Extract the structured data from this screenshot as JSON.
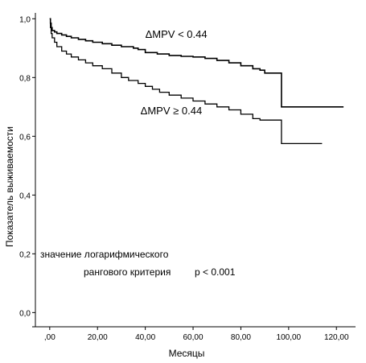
{
  "chart_data": {
    "type": "line",
    "step": true,
    "xlabel": "Месяцы",
    "ylabel": "Показатель выживаемости",
    "xlim": [
      -6,
      128
    ],
    "ylim": [
      -0.01,
      1.02
    ],
    "x_ticks": [
      0,
      20,
      40,
      60,
      80,
      100,
      120
    ],
    "x_tick_labels": [
      ",00",
      "20,00",
      "40,00",
      "60,00",
      "80,00",
      "100,00",
      "120,00"
    ],
    "y_ticks": [
      0,
      0.2,
      0.4,
      0.6,
      0.8,
      1.0
    ],
    "y_tick_labels": [
      "0,0",
      "0,2",
      "0,4",
      "0,6",
      "0,8",
      "1,0"
    ],
    "grid": false,
    "series": [
      {
        "name": "ΔMPV < 0.44",
        "color": "#000000",
        "points": [
          [
            0,
            1.0
          ],
          [
            0.3,
            0.985
          ],
          [
            0.6,
            0.97
          ],
          [
            1,
            0.96
          ],
          [
            2,
            0.955
          ],
          [
            3,
            0.95
          ],
          [
            5,
            0.945
          ],
          [
            7,
            0.94
          ],
          [
            9,
            0.935
          ],
          [
            12,
            0.93
          ],
          [
            15,
            0.925
          ],
          [
            18,
            0.92
          ],
          [
            22,
            0.915
          ],
          [
            26,
            0.91
          ],
          [
            30,
            0.905
          ],
          [
            35,
            0.9
          ],
          [
            37,
            0.895
          ],
          [
            40,
            0.885
          ],
          [
            45,
            0.88
          ],
          [
            50,
            0.875
          ],
          [
            55,
            0.872
          ],
          [
            60,
            0.87
          ],
          [
            65,
            0.865
          ],
          [
            70,
            0.858
          ],
          [
            75,
            0.85
          ],
          [
            80,
            0.84
          ],
          [
            85,
            0.83
          ],
          [
            88,
            0.825
          ],
          [
            90,
            0.815
          ],
          [
            97,
            0.815
          ],
          [
            97,
            0.7
          ],
          [
            123,
            0.7
          ]
        ]
      },
      {
        "name": "ΔMPV ≥ 0.44",
        "color": "#000000",
        "points": [
          [
            0,
            1.0
          ],
          [
            0.3,
            0.97
          ],
          [
            0.6,
            0.95
          ],
          [
            1,
            0.935
          ],
          [
            2,
            0.92
          ],
          [
            3,
            0.905
          ],
          [
            5,
            0.89
          ],
          [
            7,
            0.88
          ],
          [
            9,
            0.87
          ],
          [
            12,
            0.86
          ],
          [
            15,
            0.85
          ],
          [
            18,
            0.84
          ],
          [
            22,
            0.83
          ],
          [
            26,
            0.815
          ],
          [
            30,
            0.8
          ],
          [
            33,
            0.79
          ],
          [
            37,
            0.78
          ],
          [
            40,
            0.77
          ],
          [
            43,
            0.76
          ],
          [
            46,
            0.75
          ],
          [
            50,
            0.74
          ],
          [
            55,
            0.73
          ],
          [
            60,
            0.72
          ],
          [
            65,
            0.71
          ],
          [
            70,
            0.7
          ],
          [
            75,
            0.69
          ],
          [
            80,
            0.675
          ],
          [
            85,
            0.66
          ],
          [
            88,
            0.655
          ],
          [
            97,
            0.655
          ],
          [
            97,
            0.575
          ],
          [
            114,
            0.575
          ]
        ]
      }
    ],
    "annotations": [
      {
        "text": "ΔMPV < 0.44",
        "x": 40,
        "y": 0.935
      },
      {
        "text": "ΔMPV ≥ 0.44",
        "x": 38,
        "y": 0.675
      }
    ],
    "note_lines": [
      "значение логарифмического",
      "рангового критерия",
      "p < 0.001"
    ]
  }
}
